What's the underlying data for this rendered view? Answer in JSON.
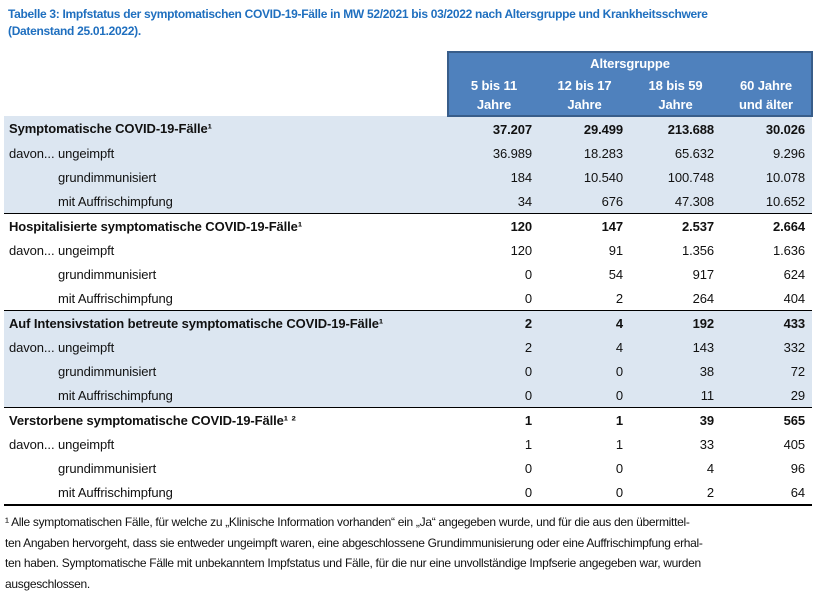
{
  "title": {
    "line1": "Tabelle 3: Impfstatus der symptomatischen COVID-19-Fälle in MW 52/2021 bis 03/2022 nach Altersgruppe und Krankheitsschwere",
    "line2": "(Datenstand 25.01.2022)."
  },
  "colors": {
    "title_blue": "#1F6FBF",
    "header_bg": "#4F81BD",
    "header_border": "#385D8A",
    "band_bg": "#DCE6F1",
    "divider": "#000000"
  },
  "table": {
    "group_header": "Altersgruppe",
    "columns": [
      {
        "line1": "5 bis 11",
        "line2": "Jahre"
      },
      {
        "line1": "12 bis 17",
        "line2": "Jahre"
      },
      {
        "line1": "18 bis 59",
        "line2": "Jahre"
      },
      {
        "line1": "60 Jahre",
        "line2": "und älter"
      }
    ],
    "davon_label": "davon...",
    "sections": [
      {
        "label": "Symptomatische COVID-19-Fälle¹",
        "values": [
          "37.207",
          "29.499",
          "213.688",
          "30.026"
        ],
        "rows": [
          {
            "label": "ungeimpft",
            "values": [
              "36.989",
              "18.283",
              "65.632",
              "9.296"
            ]
          },
          {
            "label": "grundimmunisiert",
            "values": [
              "184",
              "10.540",
              "100.748",
              "10.078"
            ]
          },
          {
            "label": "mit Auffrischimpfung",
            "values": [
              "34",
              "676",
              "47.308",
              "10.652"
            ]
          }
        ]
      },
      {
        "label": "Hospitalisierte symptomatische COVID-19-Fälle¹",
        "values": [
          "120",
          "147",
          "2.537",
          "2.664"
        ],
        "rows": [
          {
            "label": "ungeimpft",
            "values": [
              "120",
              "91",
              "1.356",
              "1.636"
            ]
          },
          {
            "label": "grundimmunisiert",
            "values": [
              "0",
              "54",
              "917",
              "624"
            ]
          },
          {
            "label": "mit Auffrischimpfung",
            "values": [
              "0",
              "2",
              "264",
              "404"
            ]
          }
        ]
      },
      {
        "label": "Auf Intensivstation betreute symptomatische COVID-19-Fälle¹",
        "values": [
          "2",
          "4",
          "192",
          "433"
        ],
        "rows": [
          {
            "label": "ungeimpft",
            "values": [
              "2",
              "4",
              "143",
              "332"
            ]
          },
          {
            "label": "grundimmunisiert",
            "values": [
              "0",
              "0",
              "38",
              "72"
            ]
          },
          {
            "label": "mit Auffrischimpfung",
            "values": [
              "0",
              "0",
              "11",
              "29"
            ]
          }
        ]
      },
      {
        "label": "Verstorbene symptomatische COVID-19-Fälle¹ ²",
        "values": [
          "1",
          "1",
          "39",
          "565"
        ],
        "rows": [
          {
            "label": "ungeimpft",
            "values": [
              "1",
              "1",
              "33",
              "405"
            ]
          },
          {
            "label": "grundimmunisiert",
            "values": [
              "0",
              "0",
              "4",
              "96"
            ]
          },
          {
            "label": "mit Auffrischimpfung",
            "values": [
              "0",
              "0",
              "2",
              "64"
            ]
          }
        ]
      }
    ]
  },
  "footnote": {
    "lines": [
      "¹ Alle symptomatischen Fälle, für welche zu „Klinische Information vorhanden“ ein „Ja“ angegeben wurde, und für die aus den übermittel-",
      "ten Angaben hervorgeht, dass sie entweder ungeimpft waren, eine abgeschlossene Grundimmunisierung oder eine Auffrischimpfung erhal-",
      "ten haben. Symptomatische Fälle mit unbekanntem Impfstatus und Fälle, für die nur eine unvollständige Impfserie angegeben war, wurden",
      "ausgeschlossen."
    ]
  }
}
